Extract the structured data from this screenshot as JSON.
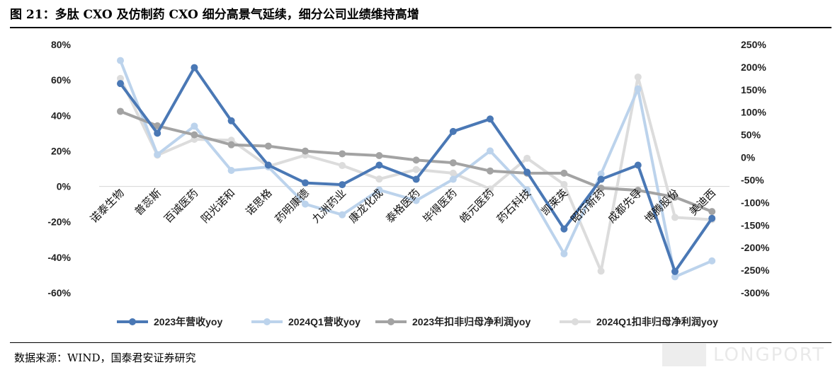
{
  "figure": {
    "title": "图 21：多肽 CXO 及仿制药 CXO 细分高景气延续，细分公司业绩维持高增",
    "source": "数据来源：WIND，国泰君安证券研究",
    "watermark": "LONGPORT"
  },
  "chart_data": {
    "type": "line",
    "categories": [
      "诺泰生物",
      "普蕊斯",
      "百诚医药",
      "阳光诺和",
      "诺思格",
      "药明康德",
      "九洲药业",
      "康龙化成",
      "泰格医药",
      "毕得医药",
      "皓元医药",
      "药石科技",
      "凯莱英",
      "昭衍新药",
      "成都先导",
      "博腾股份",
      "美迪西"
    ],
    "y_left": {
      "range": [
        -60,
        80
      ],
      "ticks": [
        80,
        60,
        40,
        20,
        0,
        -20,
        -40,
        -60
      ],
      "tick_labels": [
        "80%",
        "60%",
        "40%",
        "20%",
        "0%",
        "-20%",
        "-40%",
        "-60%"
      ]
    },
    "y_right": {
      "range": [
        -300,
        250
      ],
      "ticks": [
        250,
        200,
        150,
        100,
        50,
        0,
        -50,
        -100,
        -150,
        -200,
        -250,
        -300
      ],
      "tick_labels": [
        "250%",
        "200%",
        "150%",
        "100%",
        "50%",
        "0%",
        "-50%",
        "-100%",
        "-150%",
        "-200%",
        "-250%",
        "-300%"
      ]
    },
    "series": [
      {
        "name": "2023年营收yoy",
        "axis": "left",
        "color": "#4a78b5",
        "marker": true,
        "values": [
          58,
          30,
          67,
          37,
          12,
          2,
          1,
          12,
          4,
          31,
          38,
          8,
          -24,
          4,
          12,
          -48,
          -18
        ]
      },
      {
        "name": "2024Q1营收yoy",
        "axis": "left",
        "color": "#bcd3ec",
        "marker": true,
        "values": [
          71,
          18,
          34,
          9,
          11,
          -10,
          -16,
          -2,
          -8,
          4,
          20,
          -2,
          -38,
          7,
          55,
          -51,
          -42
        ]
      },
      {
        "name": "2023年扣非归母净利润yoy",
        "axis": "right",
        "color": "#a3a3a3",
        "marker": true,
        "values": [
          102,
          70,
          50,
          28,
          25,
          14,
          8,
          4,
          -6,
          -12,
          -30,
          -35,
          -35,
          -68,
          -73,
          -88,
          -120
        ]
      },
      {
        "name": "2024Q1扣非归母净利润yoy",
        "axis": "right",
        "color": "#dcdcdc",
        "marker": true,
        "values": [
          175,
          5,
          40,
          38,
          -20,
          5,
          -18,
          -48,
          -27,
          -35,
          -70,
          -2,
          -60,
          -252,
          178,
          -133,
          -138
        ]
      }
    ],
    "grid": false,
    "legend": "bottom"
  }
}
